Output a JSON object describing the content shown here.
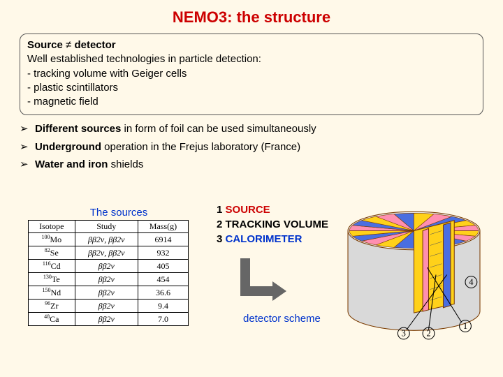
{
  "title": "NEMO3: the structure",
  "source_box": {
    "header_html": "Source ≠ detector",
    "line2": "Well established technologies in particle detection:",
    "items": [
      "- tracking volume with Geiger cells",
      "- plastic scintillators",
      "- magnetic field"
    ]
  },
  "bullets": [
    {
      "bold": "Different sources",
      "rest": " in form of foil can be used simultaneously"
    },
    {
      "bold": "Underground",
      "rest": " operation in the Frejus laboratory (France)"
    },
    {
      "bold": "Water and iron",
      "rest": " shields"
    }
  ],
  "sources": {
    "caption": "The sources",
    "columns": [
      "Isotope",
      "Study",
      "Mass(g)"
    ],
    "rows": [
      {
        "iso_mass": "100",
        "iso_el": "Mo",
        "study": "ββ2ν, ββ2ν",
        "mass": "6914"
      },
      {
        "iso_mass": "82",
        "iso_el": "Se",
        "study": "ββ2ν, ββ2ν",
        "mass": "932"
      },
      {
        "iso_mass": "116",
        "iso_el": "Cd",
        "study": "ββ2ν",
        "mass": "405"
      },
      {
        "iso_mass": "130",
        "iso_el": "Te",
        "study": "ββ2ν",
        "mass": "454"
      },
      {
        "iso_mass": "150",
        "iso_el": "Nd",
        "study": "ββ2ν",
        "mass": "36.6"
      },
      {
        "iso_mass": "96",
        "iso_el": "Zr",
        "study": "ββ2ν",
        "mass": "9.4"
      },
      {
        "iso_mass": "48",
        "iso_el": "Ca",
        "study": "ββ2ν",
        "mass": "7.0"
      }
    ]
  },
  "legend": {
    "items": [
      {
        "n": "1",
        "label": "SOURCE",
        "color": "c-red"
      },
      {
        "n": "2",
        "label": "TRACKING VOLUME",
        "color": "c-black"
      },
      {
        "n": "3",
        "label": "CALORIMETER",
        "color": "c-blue"
      }
    ]
  },
  "scheme_caption": "detector scheme",
  "detector_svg": {
    "bg": "#ffffff",
    "sector_yellow": "#ffd11a",
    "sector_pink": "#ff8fb0",
    "sector_blue": "#4a6ee0",
    "outline": "#7a3b00",
    "gray": "#c6c6c6"
  }
}
